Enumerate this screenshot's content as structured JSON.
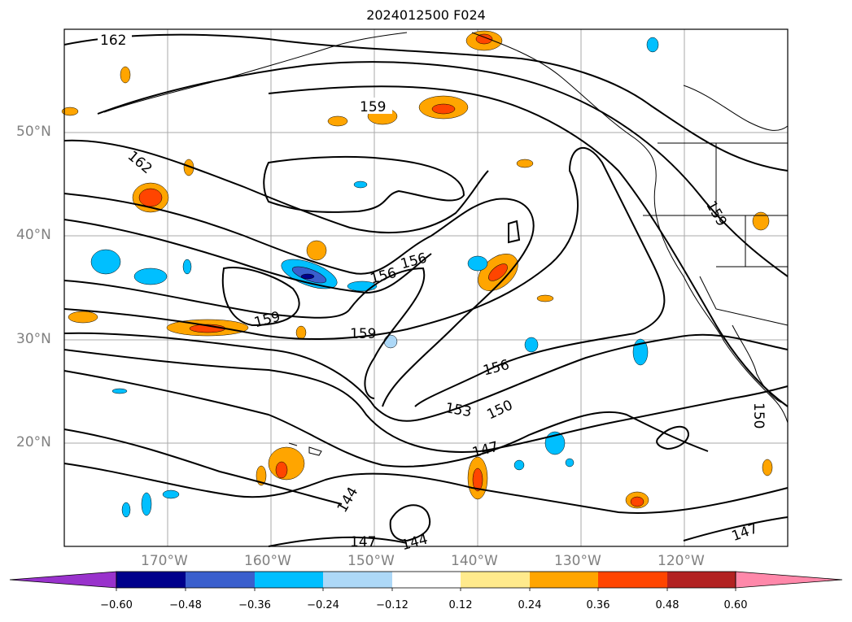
{
  "title": "2024012500 F024",
  "lat_labels": [
    "50°N",
    "40°N",
    "30°N",
    "20°N"
  ],
  "lon_labels": [
    "170°W",
    "160°W",
    "150°W",
    "140°W",
    "130°W",
    "120°W"
  ],
  "contour_labels": [
    "162",
    "159",
    "162",
    "159",
    "156",
    "156",
    "159",
    "159",
    "156",
    "153",
    "150",
    "150",
    "147",
    "144",
    "147",
    "144",
    "147"
  ],
  "colorbar": {
    "ticks": [
      "−0.60",
      "−0.48",
      "−0.36",
      "−0.24",
      "−0.12",
      "0.12",
      "0.24",
      "0.36",
      "0.48",
      "0.60"
    ],
    "colors": [
      "#9932cc",
      "#00008b",
      "#3a5fcd",
      "#00bfff",
      "#add8f7",
      "#ffffff",
      "#ffea8c",
      "#ffa500",
      "#ff4500",
      "#b22222",
      "#ff88aa"
    ]
  },
  "colors": {
    "gridline": "#aaaaaa",
    "coastline": "#000000",
    "label_gray": "#808080"
  }
}
